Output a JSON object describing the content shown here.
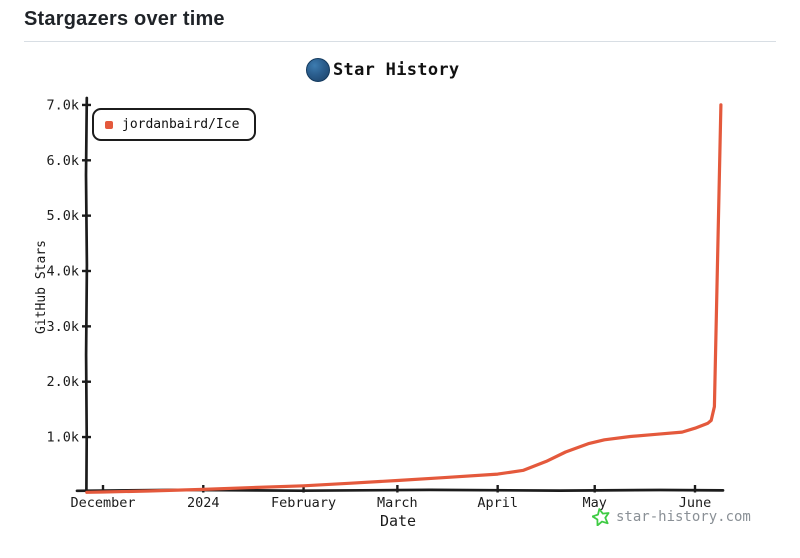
{
  "page": {
    "title": "Stargazers over time"
  },
  "chart": {
    "watermark": "star-history.com",
    "colors": {
      "line": "#e4593c",
      "watermark_star": "#3fcb44",
      "watermark_text": "#8a9096",
      "logo_blue": "#2a5d8d",
      "axis": "#1c1c1c"
    },
    "icons": {
      "logo": "star-history-planet-circle",
      "watermark_star": "hand-drawn-star-outline"
    }
  },
  "chart_data": {
    "type": "line",
    "title": "Star History",
    "xlabel": "Date",
    "ylabel": "GitHub Stars",
    "ylim": [
      0,
      7000
    ],
    "grid": false,
    "legend_position": "top-left",
    "x_ticks": [
      {
        "label": "December",
        "date": "2023-12-01"
      },
      {
        "label": "2024",
        "date": "2024-01-01"
      },
      {
        "label": "February",
        "date": "2024-02-01"
      },
      {
        "label": "March",
        "date": "2024-03-01"
      },
      {
        "label": "April",
        "date": "2024-04-01"
      },
      {
        "label": "May",
        "date": "2024-05-01"
      },
      {
        "label": "June",
        "date": "2024-06-01"
      }
    ],
    "y_ticks": [
      {
        "label": "1.0k",
        "value": 1000
      },
      {
        "label": "2.0k",
        "value": 2000
      },
      {
        "label": "3.0k",
        "value": 3000
      },
      {
        "label": "4.0k",
        "value": 4000
      },
      {
        "label": "5.0k",
        "value": 5000
      },
      {
        "label": "6.0k",
        "value": 6000
      },
      {
        "label": "7.0k",
        "value": 7000
      }
    ],
    "series": [
      {
        "name": "jordanbaird/Ice",
        "color": "#e4593c",
        "points": [
          {
            "date": "2023-11-26",
            "stars": 2
          },
          {
            "date": "2023-12-01",
            "stars": 8
          },
          {
            "date": "2023-12-15",
            "stars": 25
          },
          {
            "date": "2024-01-01",
            "stars": 55
          },
          {
            "date": "2024-01-15",
            "stars": 85
          },
          {
            "date": "2024-02-01",
            "stars": 120
          },
          {
            "date": "2024-02-15",
            "stars": 165
          },
          {
            "date": "2024-03-01",
            "stars": 215
          },
          {
            "date": "2024-03-15",
            "stars": 265
          },
          {
            "date": "2024-04-01",
            "stars": 330
          },
          {
            "date": "2024-04-09",
            "stars": 400
          },
          {
            "date": "2024-04-16",
            "stars": 560
          },
          {
            "date": "2024-04-22",
            "stars": 730
          },
          {
            "date": "2024-04-29",
            "stars": 880
          },
          {
            "date": "2024-05-04",
            "stars": 950
          },
          {
            "date": "2024-05-12",
            "stars": 1010
          },
          {
            "date": "2024-05-20",
            "stars": 1050
          },
          {
            "date": "2024-05-28",
            "stars": 1090
          },
          {
            "date": "2024-06-01",
            "stars": 1160
          },
          {
            "date": "2024-06-05",
            "stars": 1250
          },
          {
            "date": "2024-06-06",
            "stars": 1300
          },
          {
            "date": "2024-06-07",
            "stars": 1550
          },
          {
            "date": "2024-06-09",
            "stars": 7000
          }
        ]
      }
    ]
  }
}
